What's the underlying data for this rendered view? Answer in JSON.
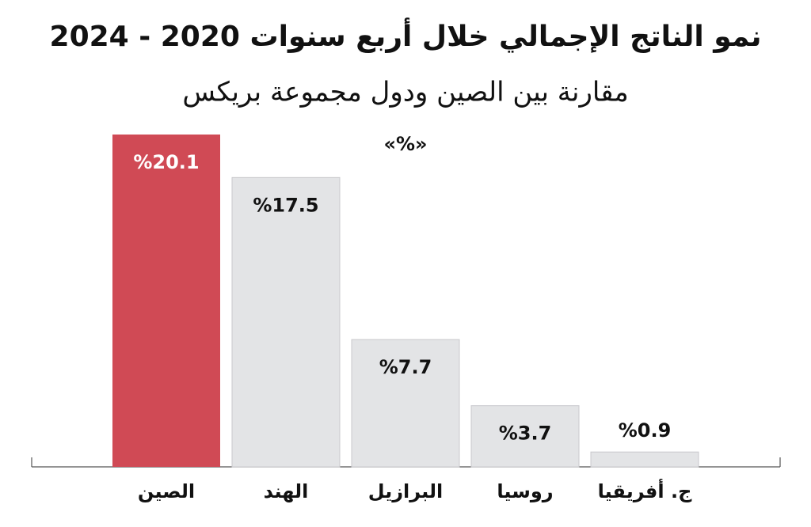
{
  "chart_data": {
    "type": "bar",
    "title": "نمو الناتج الإجمالي خلال أربع سنوات 2020 - 2024",
    "subtitle": "مقارنة بين الصين ودول مجموعة بريكس",
    "unit_label": "«%»",
    "categories": [
      "الصين",
      "الهند",
      "البرازيل",
      "روسيا",
      "ج. أفريقيا"
    ],
    "values": [
      20.1,
      17.5,
      7.7,
      3.7,
      0.9
    ],
    "value_labels": [
      "%20.1",
      "%17.5",
      "%7.7",
      "%3.7",
      "%0.9"
    ],
    "colors": [
      "#d04a55",
      "#e3e4e6",
      "#e3e4e6",
      "#e3e4e6",
      "#e3e4e6"
    ],
    "ylim": [
      0,
      20.1
    ]
  }
}
